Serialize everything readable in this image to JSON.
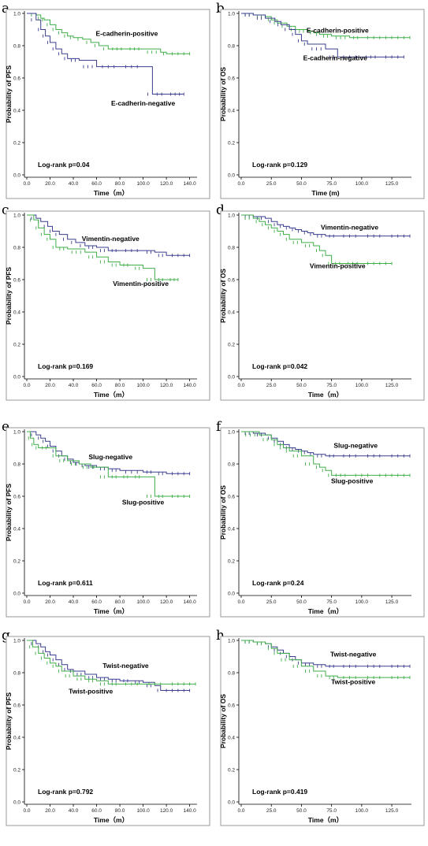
{
  "colors": {
    "green": "#3fae49",
    "blue": "#3a3f8f"
  },
  "chart_data": [
    {
      "panel": "a",
      "type": "line",
      "ylabel": "Probability of PFS",
      "xlabel": "Time（m）",
      "xlim": [
        0,
        145
      ],
      "ylim": [
        0,
        1.0
      ],
      "xticks": [
        0,
        20,
        40,
        60,
        80,
        100,
        120,
        140
      ],
      "xtick_labels": [
        "0.0",
        "20.0",
        "40.0",
        "60.0",
        "80.0",
        "100.0",
        "120.0",
        "140.0"
      ],
      "yticks": [
        0,
        0.2,
        0.4,
        0.6,
        0.8,
        1.0
      ],
      "ytick_labels": [
        "0.0",
        "0.2",
        "0.4",
        "0.6",
        "0.8",
        "1.0"
      ],
      "pvalue": "Log-rank p=0.04",
      "series": [
        {
          "name": "E-cadherin-positive",
          "color": "green",
          "x": [
            0,
            8,
            12,
            15,
            20,
            25,
            30,
            35,
            40,
            48,
            55,
            62,
            70,
            85,
            100,
            115,
            120,
            140
          ],
          "y": [
            1.0,
            0.99,
            0.97,
            0.96,
            0.93,
            0.9,
            0.88,
            0.86,
            0.85,
            0.84,
            0.82,
            0.8,
            0.78,
            0.78,
            0.78,
            0.76,
            0.75,
            0.75
          ]
        },
        {
          "name": "E-cadherin-negative",
          "color": "blue",
          "x": [
            0,
            8,
            12,
            16,
            20,
            25,
            30,
            35,
            45,
            60,
            80,
            100,
            108,
            120,
            135
          ],
          "y": [
            1.0,
            0.96,
            0.9,
            0.86,
            0.82,
            0.78,
            0.75,
            0.72,
            0.71,
            0.67,
            0.67,
            0.67,
            0.5,
            0.5,
            0.5
          ]
        }
      ],
      "labels": [
        {
          "series": 0,
          "x": 86,
          "y": 0.86
        },
        {
          "series": 1,
          "x": 100,
          "y": 0.43
        }
      ]
    },
    {
      "panel": "b",
      "type": "line",
      "ylabel": "Probability of OS",
      "xlabel": "Time (m)",
      "xlim": [
        0,
        140
      ],
      "ylim": [
        0,
        1.0
      ],
      "xticks": [
        0,
        25,
        50,
        75,
        100,
        125
      ],
      "xtick_labels": [
        "0.0",
        "25.0",
        "50.0",
        "75.0",
        "100.0",
        "125.0"
      ],
      "yticks": [
        0,
        0.2,
        0.4,
        0.6,
        0.8,
        1.0
      ],
      "ytick_labels": [
        "0.0",
        "0.2",
        "0.4",
        "0.6",
        "0.8",
        "1.0"
      ],
      "pvalue": "Log-rank p=0.129",
      "series": [
        {
          "name": "E-cadherin-positive",
          "color": "green",
          "x": [
            0,
            10,
            20,
            25,
            30,
            38,
            45,
            55,
            60,
            65,
            75,
            90,
            100,
            140
          ],
          "y": [
            1.0,
            0.99,
            0.98,
            0.96,
            0.94,
            0.92,
            0.9,
            0.89,
            0.88,
            0.87,
            0.86,
            0.85,
            0.85,
            0.85
          ]
        },
        {
          "name": "E-cadherin-negative",
          "color": "blue",
          "x": [
            0,
            10,
            20,
            28,
            33,
            40,
            45,
            50,
            55,
            70,
            80,
            100,
            115,
            135
          ],
          "y": [
            1.0,
            0.99,
            0.97,
            0.95,
            0.93,
            0.9,
            0.87,
            0.83,
            0.81,
            0.78,
            0.73,
            0.73,
            0.73,
            0.73
          ]
        }
      ],
      "labels": [
        {
          "series": 0,
          "x": 80,
          "y": 0.88
        },
        {
          "series": 1,
          "x": 78,
          "y": 0.71
        }
      ]
    },
    {
      "panel": "c",
      "type": "line",
      "ylabel": "Probability of PFS",
      "xlabel": "Time（m）",
      "xlim": [
        0,
        145
      ],
      "ylim": [
        0,
        1.0
      ],
      "xticks": [
        0,
        20,
        40,
        60,
        80,
        100,
        120,
        140
      ],
      "xtick_labels": [
        "0.0",
        "20.0",
        "40.0",
        "60.0",
        "80.0",
        "100.0",
        "120.0",
        "140.0"
      ],
      "yticks": [
        0,
        0.2,
        0.4,
        0.6,
        0.8,
        1.0
      ],
      "ytick_labels": [
        "0.0",
        "0.2",
        "0.4",
        "0.6",
        "0.8",
        "1.0"
      ],
      "pvalue": "Log-rank p=0.169",
      "series": [
        {
          "name": "Vimentin-negative",
          "color": "blue",
          "x": [
            0,
            8,
            12,
            18,
            22,
            28,
            35,
            42,
            50,
            60,
            70,
            80,
            100,
            110,
            120,
            140
          ],
          "y": [
            1.0,
            0.98,
            0.96,
            0.93,
            0.9,
            0.88,
            0.85,
            0.83,
            0.81,
            0.8,
            0.78,
            0.78,
            0.78,
            0.77,
            0.75,
            0.75
          ]
        },
        {
          "name": "Vimentin-positive",
          "color": "green",
          "x": [
            0,
            6,
            10,
            15,
            20,
            25,
            35,
            50,
            60,
            70,
            80,
            90,
            100,
            110,
            120,
            130
          ],
          "y": [
            1.0,
            0.97,
            0.92,
            0.88,
            0.85,
            0.8,
            0.79,
            0.77,
            0.74,
            0.71,
            0.69,
            0.69,
            0.67,
            0.6,
            0.6,
            0.6
          ]
        }
      ],
      "labels": [
        {
          "series": 0,
          "x": 72,
          "y": 0.84
        },
        {
          "series": 1,
          "x": 98,
          "y": 0.56
        }
      ]
    },
    {
      "panel": "d",
      "type": "line",
      "ylabel": "Probability of OS",
      "xlabel": "Time（m）",
      "xlim": [
        0,
        140
      ],
      "ylim": [
        0,
        1.0
      ],
      "xticks": [
        0,
        25,
        50,
        75,
        100,
        125
      ],
      "xtick_labels": [
        "0.0",
        "25.0",
        "50.0",
        "75.0",
        "100.0",
        "125.0"
      ],
      "yticks": [
        0,
        0.2,
        0.4,
        0.6,
        0.8,
        1.0
      ],
      "ytick_labels": [
        "0.0",
        "0.2",
        "0.4",
        "0.6",
        "0.8",
        "1.0"
      ],
      "pvalue": "Log-rank p=0.042",
      "series": [
        {
          "name": "Vimentin-negative",
          "color": "blue",
          "x": [
            0,
            10,
            20,
            25,
            30,
            35,
            40,
            45,
            50,
            55,
            60,
            70,
            80,
            100,
            120,
            140
          ],
          "y": [
            1.0,
            0.99,
            0.98,
            0.96,
            0.94,
            0.93,
            0.92,
            0.91,
            0.9,
            0.89,
            0.88,
            0.87,
            0.87,
            0.87,
            0.87,
            0.87
          ]
        },
        {
          "name": "Vimentin-positive",
          "color": "green",
          "x": [
            0,
            10,
            15,
            20,
            25,
            30,
            35,
            40,
            50,
            60,
            65,
            70,
            75,
            85,
            100,
            125
          ],
          "y": [
            1.0,
            0.98,
            0.96,
            0.94,
            0.92,
            0.9,
            0.88,
            0.85,
            0.83,
            0.81,
            0.78,
            0.75,
            0.7,
            0.7,
            0.7,
            0.7
          ]
        }
      ],
      "labels": [
        {
          "series": 0,
          "x": 90,
          "y": 0.91
        },
        {
          "series": 1,
          "x": 80,
          "y": 0.67
        }
      ]
    },
    {
      "panel": "e",
      "type": "line",
      "ylabel": "Probability of PFS",
      "xlabel": "Time（m）",
      "xlim": [
        0,
        145
      ],
      "ylim": [
        0,
        1.0
      ],
      "xticks": [
        0,
        20,
        40,
        60,
        80,
        100,
        120,
        140
      ],
      "xtick_labels": [
        "0.0",
        "20.0",
        "40.0",
        "60.0",
        "80.0",
        "100.0",
        "120.0",
        "140.0"
      ],
      "yticks": [
        0,
        0.2,
        0.4,
        0.6,
        0.8,
        1.0
      ],
      "ytick_labels": [
        "0.0",
        "0.2",
        "0.4",
        "0.6",
        "0.8",
        "1.0"
      ],
      "pvalue": "Log-rank p=0.611",
      "series": [
        {
          "name": "Slug-negative",
          "color": "blue",
          "x": [
            0,
            8,
            12,
            16,
            20,
            25,
            30,
            35,
            40,
            45,
            50,
            60,
            70,
            80,
            100,
            110,
            120,
            140
          ],
          "y": [
            1.0,
            0.98,
            0.96,
            0.94,
            0.91,
            0.88,
            0.85,
            0.83,
            0.81,
            0.8,
            0.79,
            0.78,
            0.77,
            0.76,
            0.75,
            0.75,
            0.74,
            0.74
          ]
        },
        {
          "name": "Slug-positive",
          "color": "green",
          "x": [
            0,
            3,
            6,
            10,
            20,
            25,
            35,
            45,
            55,
            60,
            70,
            80,
            90,
            100,
            110,
            120,
            140
          ],
          "y": [
            1.0,
            0.96,
            0.92,
            0.9,
            0.9,
            0.85,
            0.82,
            0.8,
            0.78,
            0.78,
            0.72,
            0.72,
            0.72,
            0.72,
            0.6,
            0.6,
            0.6
          ]
        }
      ],
      "labels": [
        {
          "series": 0,
          "x": 72,
          "y": 0.83
        },
        {
          "series": 1,
          "x": 100,
          "y": 0.55
        }
      ]
    },
    {
      "panel": "f",
      "type": "line",
      "ylabel": "Probability of OS",
      "xlabel": "Time（m）",
      "xlim": [
        0,
        140
      ],
      "ylim": [
        0,
        1.0
      ],
      "xticks": [
        0,
        25,
        50,
        75,
        100,
        125
      ],
      "xtick_labels": [
        "0.0",
        "25.0",
        "50.0",
        "75.0",
        "100.0",
        "125.0"
      ],
      "yticks": [
        0,
        0.2,
        0.4,
        0.6,
        0.8,
        1.0
      ],
      "ytick_labels": [
        "0.0",
        "0.2",
        "0.4",
        "0.6",
        "0.8",
        "1.0"
      ],
      "pvalue": "Log-rank p=0.24",
      "series": [
        {
          "name": "Slug-negative",
          "color": "blue",
          "x": [
            0,
            10,
            20,
            25,
            30,
            35,
            40,
            45,
            50,
            55,
            60,
            70,
            80,
            100,
            120,
            140
          ],
          "y": [
            1.0,
            0.99,
            0.98,
            0.96,
            0.94,
            0.92,
            0.9,
            0.89,
            0.88,
            0.87,
            0.86,
            0.85,
            0.85,
            0.85,
            0.85,
            0.85
          ]
        },
        {
          "name": "Slug-positive",
          "color": "green",
          "x": [
            0,
            15,
            25,
            30,
            35,
            40,
            50,
            60,
            65,
            70,
            75,
            90,
            110,
            140
          ],
          "y": [
            1.0,
            0.98,
            0.95,
            0.92,
            0.9,
            0.88,
            0.85,
            0.8,
            0.78,
            0.76,
            0.73,
            0.73,
            0.73,
            0.73
          ]
        }
      ],
      "labels": [
        {
          "series": 0,
          "x": 95,
          "y": 0.9
        },
        {
          "series": 1,
          "x": 92,
          "y": 0.68
        }
      ]
    },
    {
      "panel": "g",
      "type": "line",
      "ylabel": "Probability of PFS",
      "xlabel": "Time（m）",
      "xlim": [
        0,
        145
      ],
      "ylim": [
        0,
        1.0
      ],
      "xticks": [
        0,
        20,
        40,
        60,
        80,
        100,
        120,
        140
      ],
      "xtick_labels": [
        "0.0",
        "20.0",
        "40.0",
        "60.0",
        "80.0",
        "100.0",
        "120.0",
        "140.0"
      ],
      "yticks": [
        0,
        0.2,
        0.4,
        0.6,
        0.8,
        1.0
      ],
      "ytick_labels": [
        "0.0",
        "0.2",
        "0.4",
        "0.6",
        "0.8",
        "1.0"
      ],
      "pvalue": "Log-rank p=0.792",
      "series": [
        {
          "name": "Twist-negative",
          "color": "blue",
          "x": [
            0,
            8,
            12,
            16,
            20,
            25,
            30,
            35,
            40,
            50,
            60,
            70,
            80,
            90,
            100,
            110,
            115,
            140
          ],
          "y": [
            1.0,
            0.98,
            0.96,
            0.93,
            0.91,
            0.88,
            0.85,
            0.82,
            0.81,
            0.79,
            0.77,
            0.76,
            0.75,
            0.75,
            0.74,
            0.72,
            0.69,
            0.69
          ]
        },
        {
          "name": "Twist-positive",
          "color": "green",
          "x": [
            0,
            5,
            10,
            15,
            20,
            25,
            30,
            40,
            50,
            60,
            70,
            80,
            100,
            120,
            145
          ],
          "y": [
            1.0,
            0.96,
            0.92,
            0.89,
            0.86,
            0.84,
            0.81,
            0.78,
            0.76,
            0.75,
            0.73,
            0.73,
            0.73,
            0.73,
            0.73
          ]
        }
      ],
      "labels": [
        {
          "series": 0,
          "x": 85,
          "y": 0.83
        },
        {
          "series": 1,
          "x": 55,
          "y": 0.67
        }
      ]
    },
    {
      "panel": "h",
      "type": "line",
      "ylabel": "Probability of OS",
      "xlabel": "Time（m）",
      "xlim": [
        0,
        140
      ],
      "ylim": [
        0,
        1.0
      ],
      "xticks": [
        0,
        25,
        50,
        75,
        100,
        125
      ],
      "xtick_labels": [
        "0.0",
        "25.0",
        "50.0",
        "75.0",
        "100.0",
        "125.0"
      ],
      "yticks": [
        0,
        0.2,
        0.4,
        0.6,
        0.8,
        1.0
      ],
      "ytick_labels": [
        "0.0",
        "0.2",
        "0.4",
        "0.6",
        "0.8",
        "1.0"
      ],
      "pvalue": "Log-rank p=0.419",
      "series": [
        {
          "name": "Twist-negative",
          "color": "blue",
          "x": [
            0,
            10,
            20,
            25,
            30,
            35,
            40,
            45,
            50,
            60,
            70,
            80,
            100,
            120,
            140
          ],
          "y": [
            1.0,
            0.99,
            0.98,
            0.96,
            0.94,
            0.92,
            0.9,
            0.88,
            0.86,
            0.85,
            0.84,
            0.84,
            0.84,
            0.84,
            0.84
          ]
        },
        {
          "name": "Twist-positive",
          "color": "green",
          "x": [
            0,
            10,
            20,
            25,
            30,
            40,
            50,
            60,
            70,
            80,
            100,
            120,
            140
          ],
          "y": [
            1.0,
            0.99,
            0.98,
            0.95,
            0.92,
            0.88,
            0.84,
            0.81,
            0.78,
            0.77,
            0.77,
            0.77,
            0.77
          ]
        }
      ],
      "labels": [
        {
          "series": 0,
          "x": 93,
          "y": 0.9
        },
        {
          "series": 1,
          "x": 93,
          "y": 0.73
        }
      ]
    }
  ]
}
